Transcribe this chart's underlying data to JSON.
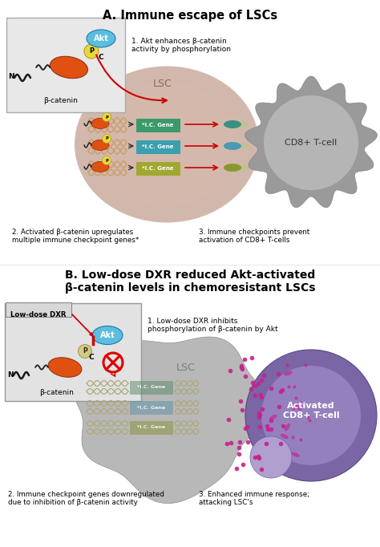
{
  "title_A": "A. Immune escape of LSCs",
  "title_B": "B. Low-dose DXR reduced Akt-activated\nβ-catenin levels in chemoresistant LSCs",
  "label_beta_cat": "β-catenin",
  "label_Akt": "Akt",
  "label_P": "P",
  "label_LSC_A": "LSC",
  "label_LSC_B": "LSC",
  "label_CD8_A": "CD8+ T-cell",
  "label_CD8_B": "Activated\nCD8+ T-cell",
  "label_IC_gene": "*I.C. Gene",
  "note1_A": "1. Akt enhances β-catenin\nactivity by phosphorylation",
  "note2_A": "2. Activated β-catenin upregulates\nmultiple immune checkpoint genes*",
  "note3_A": "3. Immune checkpoints prevent\nactivation of CD8+ T-cells",
  "label_lowdose": "Low-dose DXR",
  "note1_B": "1. Low-dose DXR inhibits\nphosphorylation of β-catenin by Akt",
  "note2_B": "2. Immune checkpoint genes downregulated\ndue to inhibition of β-catenin activity",
  "note3_B": "3. Enhanced immune response;\nattacking LSC's",
  "bg_color": "#ffffff",
  "lsc_color_A": "#c4a090",
  "lsc_inner_color_A": "#d8b8ae",
  "lsc_color_B": "#b8b8b8",
  "cd8_color_A": "#9a9a9a",
  "cd8_inner_A": "#b5b5b5",
  "cd8_color_B": "#7a65a5",
  "cd8_inner_B": "#9580be",
  "cd8_small_B": "#b0a0d0",
  "akt_color": "#5bbee0",
  "p_color": "#e8d840",
  "p_color_B": "#c8c060",
  "beta_cat_color": "#e05010",
  "gene_box_color_1": "#3a9a6a",
  "gene_box_color_2": "#3aa0b0",
  "gene_box_color_3": "#a0a830",
  "dna_color_A": "#c8a070",
  "dna_color_B": "#b0a878",
  "arrow_color_red": "#cc0000",
  "N_label": "N",
  "C_label": "C",
  "figw": 4.74,
  "figh": 6.82,
  "dpi": 100
}
